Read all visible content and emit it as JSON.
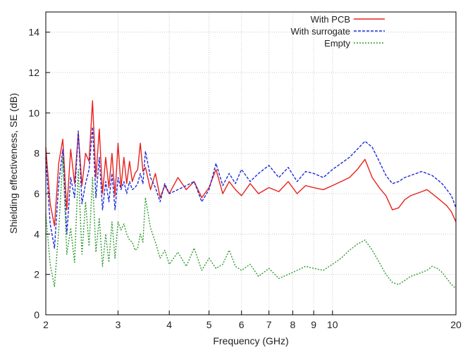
{
  "chart_data": {
    "type": "line",
    "title": "",
    "xlabel": "Frequency (GHz)",
    "ylabel": "Shielding effectiveness, SE (dB)",
    "xscale": "log",
    "xlim": [
      2,
      20
    ],
    "ylim": [
      0,
      15
    ],
    "xticks": [
      2,
      3,
      4,
      5,
      6,
      7,
      8,
      9,
      10,
      20
    ],
    "xtick_labels": [
      "2",
      "3",
      "4",
      "5",
      "6",
      "7",
      "8",
      "9",
      "10",
      "20"
    ],
    "yticks": [
      0,
      2,
      4,
      6,
      8,
      10,
      12,
      14
    ],
    "ytick_labels": [
      "0",
      "2",
      "4",
      "6",
      "8",
      "10",
      "12",
      "14"
    ],
    "grid": true,
    "legend_position": "top-right",
    "series": [
      {
        "name": "With PCB",
        "color": "#e8211d",
        "dash": "solid",
        "x": [
          2.0,
          2.05,
          2.1,
          2.15,
          2.2,
          2.25,
          2.3,
          2.35,
          2.4,
          2.45,
          2.5,
          2.55,
          2.6,
          2.65,
          2.7,
          2.75,
          2.8,
          2.85,
          2.9,
          2.95,
          3.0,
          3.05,
          3.1,
          3.15,
          3.2,
          3.25,
          3.3,
          3.35,
          3.4,
          3.45,
          3.5,
          3.6,
          3.7,
          3.8,
          3.9,
          4.0,
          4.2,
          4.4,
          4.6,
          4.8,
          5.0,
          5.2,
          5.4,
          5.6,
          5.8,
          6.0,
          6.3,
          6.6,
          7.0,
          7.4,
          7.8,
          8.2,
          8.6,
          9.0,
          9.5,
          10.0,
          10.5,
          11.0,
          11.5,
          12.0,
          12.5,
          13.0,
          13.5,
          14.0,
          14.5,
          15.0,
          15.5,
          16.0,
          16.5,
          17.0,
          17.5,
          18.0,
          18.5,
          19.0,
          19.5,
          20.0
        ],
        "y": [
          8.3,
          5.5,
          4.4,
          7.5,
          8.7,
          5.2,
          8.2,
          6.5,
          9.0,
          6.4,
          8.0,
          7.6,
          10.6,
          6.8,
          9.2,
          6.0,
          7.8,
          6.3,
          8.0,
          5.9,
          8.5,
          6.3,
          7.8,
          6.5,
          7.6,
          6.6,
          7.0,
          7.2,
          8.5,
          7.1,
          7.3,
          6.2,
          7.0,
          5.8,
          6.4,
          6.0,
          6.8,
          6.2,
          6.6,
          5.8,
          6.3,
          7.2,
          6.0,
          6.6,
          6.2,
          5.9,
          6.5,
          6.0,
          6.3,
          6.1,
          6.6,
          6.0,
          6.4,
          6.3,
          6.2,
          6.4,
          6.6,
          6.8,
          7.2,
          7.7,
          6.8,
          6.3,
          5.9,
          5.2,
          5.3,
          5.7,
          5.9,
          6.0,
          6.1,
          6.2,
          6.0,
          5.8,
          5.6,
          5.4,
          5.1,
          4.6
        ]
      },
      {
        "name": "With surrogate",
        "color": "#1f2bd6",
        "dash": "dashed",
        "x": [
          2.0,
          2.05,
          2.1,
          2.15,
          2.2,
          2.25,
          2.3,
          2.35,
          2.4,
          2.45,
          2.5,
          2.55,
          2.6,
          2.65,
          2.7,
          2.75,
          2.8,
          2.85,
          2.9,
          2.95,
          3.0,
          3.05,
          3.1,
          3.15,
          3.2,
          3.25,
          3.3,
          3.35,
          3.4,
          3.45,
          3.5,
          3.6,
          3.7,
          3.8,
          3.9,
          4.0,
          4.2,
          4.4,
          4.6,
          4.8,
          5.0,
          5.2,
          5.4,
          5.6,
          5.8,
          6.0,
          6.3,
          6.6,
          7.0,
          7.4,
          7.8,
          8.2,
          8.6,
          9.0,
          9.5,
          10.0,
          10.5,
          11.0,
          11.5,
          12.0,
          12.5,
          13.0,
          13.5,
          14.0,
          14.5,
          15.0,
          15.5,
          16.0,
          16.5,
          17.0,
          17.5,
          18.0,
          18.5,
          19.0,
          19.5,
          20.0
        ],
        "y": [
          7.8,
          4.5,
          3.3,
          6.5,
          8.2,
          4.0,
          6.8,
          5.8,
          9.1,
          5.5,
          6.5,
          7.2,
          9.3,
          5.8,
          7.8,
          5.2,
          6.6,
          5.6,
          7.0,
          5.2,
          6.8,
          6.2,
          6.6,
          6.0,
          6.6,
          6.2,
          6.3,
          6.5,
          7.0,
          6.5,
          8.1,
          6.8,
          6.3,
          5.6,
          6.5,
          6.0,
          6.2,
          6.4,
          6.6,
          5.6,
          6.2,
          7.5,
          6.4,
          7.0,
          6.5,
          7.2,
          6.6,
          7.0,
          7.4,
          6.8,
          7.3,
          6.6,
          7.1,
          7.0,
          6.8,
          7.2,
          7.5,
          7.8,
          8.2,
          8.6,
          8.3,
          7.6,
          6.9,
          6.5,
          6.6,
          6.8,
          6.9,
          7.0,
          7.1,
          7.0,
          6.9,
          6.7,
          6.5,
          6.2,
          5.9,
          5.3
        ]
      },
      {
        "name": "Empty",
        "color": "#2e9a30",
        "dash": "dotted",
        "x": [
          2.0,
          2.05,
          2.1,
          2.15,
          2.2,
          2.25,
          2.3,
          2.35,
          2.4,
          2.45,
          2.5,
          2.55,
          2.6,
          2.65,
          2.7,
          2.75,
          2.8,
          2.85,
          2.9,
          2.95,
          3.0,
          3.05,
          3.1,
          3.15,
          3.2,
          3.25,
          3.3,
          3.35,
          3.4,
          3.45,
          3.5,
          3.6,
          3.7,
          3.8,
          3.9,
          4.0,
          4.2,
          4.4,
          4.6,
          4.8,
          5.0,
          5.2,
          5.4,
          5.6,
          5.8,
          6.0,
          6.3,
          6.6,
          7.0,
          7.4,
          7.8,
          8.2,
          8.6,
          9.0,
          9.5,
          10.0,
          10.5,
          11.0,
          11.5,
          12.0,
          12.5,
          13.0,
          13.5,
          14.0,
          14.5,
          15.0,
          15.5,
          16.0,
          16.5,
          17.0,
          17.5,
          18.0,
          18.5,
          19.0,
          19.5,
          20.0
        ],
        "y": [
          5.0,
          2.5,
          1.4,
          4.2,
          7.8,
          3.0,
          4.3,
          2.6,
          7.2,
          3.0,
          5.6,
          3.4,
          6.8,
          3.1,
          4.8,
          2.4,
          4.0,
          2.6,
          4.6,
          2.8,
          4.6,
          4.2,
          4.5,
          4.0,
          3.7,
          3.6,
          3.2,
          3.3,
          4.0,
          3.6,
          5.8,
          4.3,
          3.6,
          2.8,
          3.2,
          2.5,
          3.1,
          2.4,
          3.3,
          2.2,
          2.8,
          2.3,
          2.5,
          3.2,
          2.4,
          2.2,
          2.5,
          1.9,
          2.3,
          1.8,
          2.0,
          2.2,
          2.4,
          2.3,
          2.2,
          2.5,
          2.8,
          3.2,
          3.5,
          3.7,
          3.2,
          2.6,
          2.0,
          1.6,
          1.5,
          1.7,
          1.9,
          2.0,
          2.1,
          2.2,
          2.4,
          2.3,
          2.1,
          1.8,
          1.5,
          1.3
        ]
      }
    ]
  }
}
